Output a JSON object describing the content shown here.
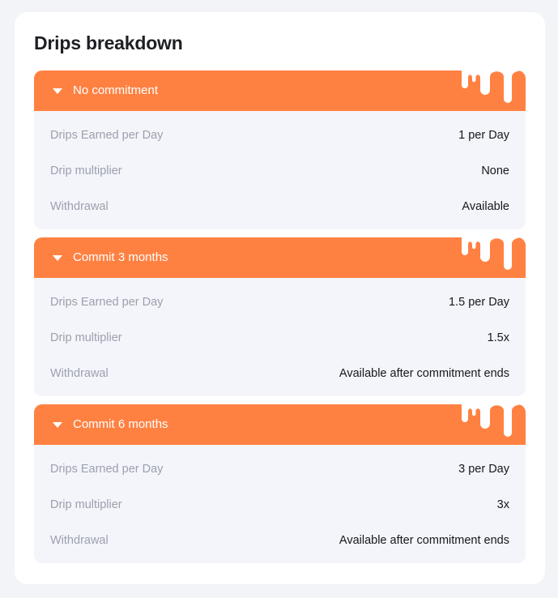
{
  "card": {
    "title": "Drips breakdown"
  },
  "colors": {
    "accent": "#ff8142",
    "page_bg": "#f3f4f8",
    "section_bg": "#f4f5fa",
    "label": "#9ba0ae",
    "value": "#16181d"
  },
  "icons": {
    "toggle": "caret-down-icon",
    "decor": "drip-decoration-icon"
  },
  "sections": [
    {
      "title": "No commitment",
      "expanded": true,
      "rows": [
        {
          "label": "Drips Earned per Day",
          "value": "1 per Day"
        },
        {
          "label": "Drip multiplier",
          "value": "None"
        },
        {
          "label": "Withdrawal",
          "value": "Available"
        }
      ]
    },
    {
      "title": "Commit 3 months",
      "expanded": true,
      "rows": [
        {
          "label": "Drips Earned per Day",
          "value": "1.5 per Day"
        },
        {
          "label": "Drip multiplier",
          "value": "1.5x"
        },
        {
          "label": "Withdrawal",
          "value": "Available after commitment ends"
        }
      ]
    },
    {
      "title": "Commit 6 months",
      "expanded": true,
      "rows": [
        {
          "label": "Drips Earned per Day",
          "value": "3 per Day"
        },
        {
          "label": "Drip multiplier",
          "value": "3x"
        },
        {
          "label": "Withdrawal",
          "value": "Available after commitment ends"
        }
      ]
    }
  ]
}
